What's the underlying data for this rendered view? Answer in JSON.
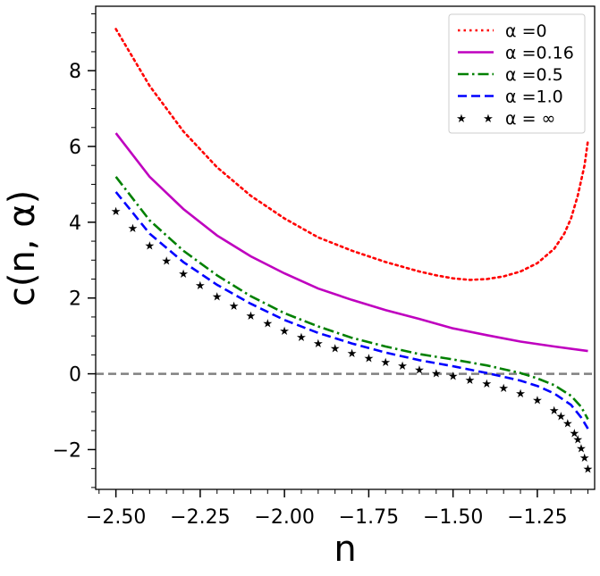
{
  "chart_data": {
    "type": "line",
    "title": "",
    "xlabel": "n",
    "ylabel": "c(n, α)",
    "xlim": [
      -2.56,
      -1.08
    ],
    "ylim": [
      -3.05,
      9.7
    ],
    "xticks": [
      -2.5,
      -2.25,
      -2.0,
      -1.75,
      -1.5,
      -1.25
    ],
    "xtick_labels": [
      "−2.50",
      "−2.25",
      "−2.00",
      "−1.75",
      "−1.50",
      "−1.25"
    ],
    "yticks": [
      -2,
      0,
      2,
      4,
      6,
      8
    ],
    "ytick_labels": [
      "−2",
      "0",
      "2",
      "4",
      "6",
      "8"
    ],
    "grid": false,
    "legend_position": "top-right",
    "reference_line": {
      "y": 0,
      "style": "dashed",
      "color": "#808080"
    },
    "series": [
      {
        "name": "α =0",
        "color": "#ff0000",
        "style": "dotted",
        "marker": "none",
        "x": [
          -2.5,
          -2.4,
          -2.3,
          -2.2,
          -2.1,
          -2.0,
          -1.9,
          -1.8,
          -1.7,
          -1.6,
          -1.55,
          -1.5,
          -1.45,
          -1.4,
          -1.35,
          -1.3,
          -1.25,
          -1.2,
          -1.17,
          -1.15,
          -1.13,
          -1.11,
          -1.1
        ],
        "y": [
          9.1,
          7.6,
          6.4,
          5.45,
          4.7,
          4.1,
          3.6,
          3.25,
          2.95,
          2.7,
          2.6,
          2.52,
          2.48,
          2.5,
          2.57,
          2.7,
          2.92,
          3.3,
          3.7,
          4.1,
          4.7,
          5.5,
          6.15
        ]
      },
      {
        "name": "α =0.16",
        "color": "#bf00bf",
        "style": "solid",
        "marker": "none",
        "x": [
          -2.5,
          -2.4,
          -2.3,
          -2.2,
          -2.1,
          -2.0,
          -1.9,
          -1.8,
          -1.7,
          -1.6,
          -1.5,
          -1.4,
          -1.3,
          -1.2,
          -1.1
        ],
        "y": [
          6.35,
          5.2,
          4.35,
          3.65,
          3.1,
          2.65,
          2.25,
          1.95,
          1.68,
          1.45,
          1.2,
          1.02,
          0.85,
          0.72,
          0.6
        ]
      },
      {
        "name": "α =0.5",
        "color": "#008000",
        "style": "dashdot",
        "marker": "none",
        "x": [
          -2.5,
          -2.4,
          -2.3,
          -2.2,
          -2.1,
          -2.0,
          -1.9,
          -1.8,
          -1.7,
          -1.6,
          -1.5,
          -1.4,
          -1.3,
          -1.25,
          -1.2,
          -1.15,
          -1.12,
          -1.1
        ],
        "y": [
          5.2,
          4.05,
          3.25,
          2.6,
          2.05,
          1.6,
          1.25,
          0.95,
          0.72,
          0.52,
          0.38,
          0.22,
          0.02,
          -0.12,
          -0.3,
          -0.58,
          -0.87,
          -1.2
        ]
      },
      {
        "name": "α =1.0",
        "color": "#0000ff",
        "style": "dashed",
        "marker": "none",
        "x": [
          -2.5,
          -2.4,
          -2.3,
          -2.2,
          -2.1,
          -2.0,
          -1.9,
          -1.8,
          -1.7,
          -1.6,
          -1.5,
          -1.4,
          -1.3,
          -1.25,
          -1.2,
          -1.15,
          -1.12,
          -1.1
        ],
        "y": [
          4.8,
          3.7,
          2.95,
          2.35,
          1.85,
          1.42,
          1.08,
          0.8,
          0.56,
          0.36,
          0.2,
          0.02,
          -0.18,
          -0.32,
          -0.52,
          -0.82,
          -1.15,
          -1.45
        ]
      },
      {
        "name": "α = ∞",
        "color": "#000000",
        "style": "none",
        "marker": "star",
        "x": [
          -2.5,
          -2.45,
          -2.4,
          -2.35,
          -2.3,
          -2.25,
          -2.2,
          -2.15,
          -2.1,
          -2.05,
          -2.0,
          -1.95,
          -1.9,
          -1.85,
          -1.8,
          -1.75,
          -1.7,
          -1.65,
          -1.6,
          -1.55,
          -1.5,
          -1.45,
          -1.4,
          -1.35,
          -1.3,
          -1.25,
          -1.2,
          -1.18,
          -1.16,
          -1.14,
          -1.13,
          -1.12,
          -1.11,
          -1.1
        ],
        "y": [
          4.3,
          3.85,
          3.4,
          3.0,
          2.65,
          2.35,
          2.05,
          1.8,
          1.55,
          1.35,
          1.15,
          0.98,
          0.82,
          0.68,
          0.55,
          0.43,
          0.32,
          0.22,
          0.12,
          0.03,
          -0.05,
          -0.15,
          -0.25,
          -0.36,
          -0.5,
          -0.68,
          -0.95,
          -1.1,
          -1.3,
          -1.55,
          -1.72,
          -1.95,
          -2.2,
          -2.5
        ]
      }
    ]
  }
}
